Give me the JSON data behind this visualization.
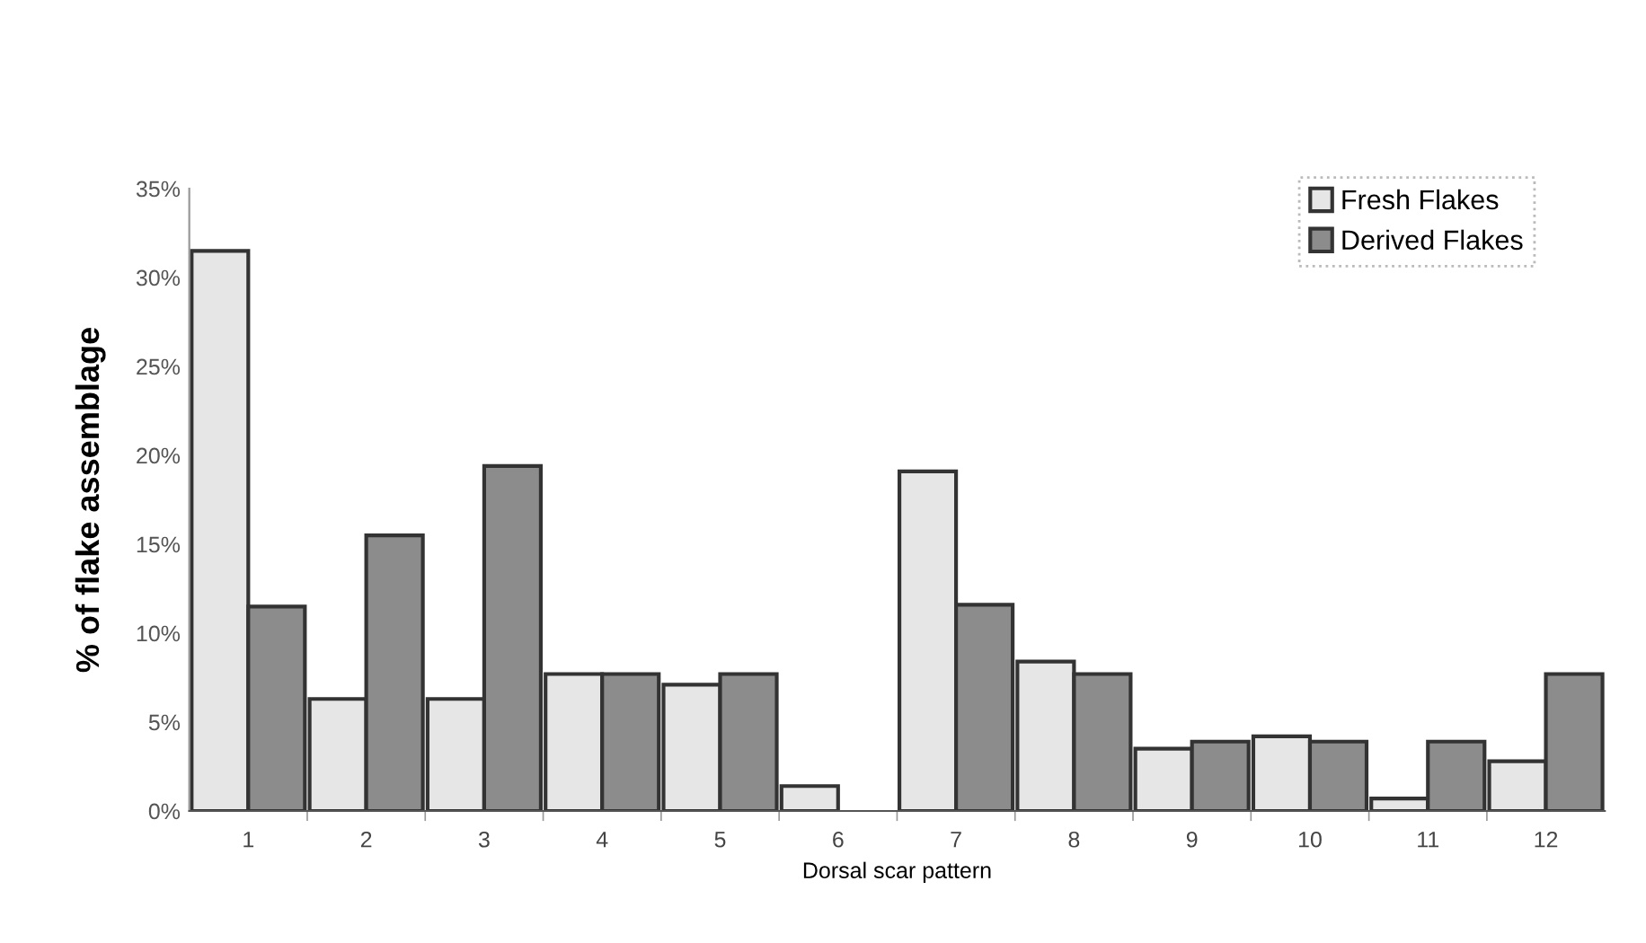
{
  "chart_data": {
    "type": "bar",
    "xlabel": "Dorsal scar pattern",
    "ylabel": "% of flake assemblage",
    "categories": [
      "1",
      "2",
      "3",
      "4",
      "5",
      "6",
      "7",
      "8",
      "9",
      "10",
      "11",
      "12"
    ],
    "series": [
      {
        "name": "Fresh Flakes",
        "color": "#e6e6e6",
        "values": [
          31.5,
          6.3,
          6.3,
          7.7,
          7.1,
          1.4,
          19.1,
          8.4,
          3.5,
          4.2,
          0.7,
          2.8
        ]
      },
      {
        "name": "Derived Flakes",
        "color": "#8c8c8c",
        "values": [
          11.5,
          15.5,
          19.4,
          7.7,
          7.7,
          null,
          11.6,
          7.7,
          3.9,
          3.9,
          3.9,
          7.7
        ]
      }
    ],
    "ylim": [
      0,
      35
    ],
    "yticks": [
      {
        "value": 0,
        "label": "0%"
      },
      {
        "value": 5,
        "label": "5%"
      },
      {
        "value": 10,
        "label": "10%"
      },
      {
        "value": 15,
        "label": "15%"
      },
      {
        "value": 20,
        "label": "20%"
      },
      {
        "value": 25,
        "label": "25%"
      },
      {
        "value": 30,
        "label": "30%"
      },
      {
        "value": 35,
        "label": "35%"
      }
    ],
    "grid": false,
    "legend": "top right"
  }
}
